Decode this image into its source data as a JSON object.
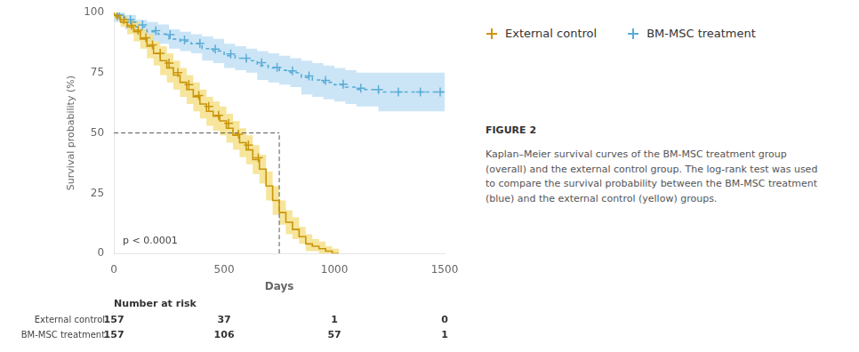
{
  "chart_data": {
    "type": "line",
    "title": "FIGURE 2",
    "caption": "Kaplan–Meier survival curves of the BM-MSC treatment group\n(overall) and the external control group. The log-rank test was used\nto compare the survival probability between the BM-MSC treatment\n(blue) and the external control (yellow) groups.",
    "x_label": "Days",
    "y_label": "Survival probability (%)",
    "xlim": [
      0,
      1500
    ],
    "ylim": [
      0,
      100
    ],
    "xticks": [
      0,
      500,
      1000,
      1500
    ],
    "yticks": [
      0,
      25,
      50,
      75,
      100
    ],
    "grid": false,
    "legend": "right",
    "series": [
      {
        "name": "External control",
        "color": "#C9950A",
        "band_color": "#F5E08A",
        "line_style": "solid",
        "marker": "cross",
        "x": [
          0,
          10,
          30,
          60,
          90,
          120,
          150,
          180,
          210,
          240,
          270,
          300,
          330,
          360,
          390,
          420,
          450,
          480,
          510,
          540,
          570,
          600,
          630,
          660,
          690,
          720,
          750,
          780,
          810,
          840,
          870,
          900,
          930,
          960,
          990,
          1020
        ],
        "values": [
          100,
          99,
          98,
          96,
          94,
          92,
          89,
          86,
          83,
          80,
          77,
          74,
          71,
          68,
          65,
          62,
          59,
          57,
          55,
          52,
          49,
          46,
          43,
          39,
          35,
          28,
          22,
          17,
          13,
          10,
          7,
          4,
          3,
          2,
          1,
          0
        ],
        "upper": [
          100,
          100,
          99,
          98,
          97,
          96,
          93,
          91,
          88,
          86,
          83,
          80,
          77,
          74,
          71,
          68,
          65,
          63,
          61,
          58,
          55,
          52,
          49,
          45,
          41,
          34,
          28,
          22,
          18,
          15,
          11,
          8,
          6,
          5,
          3,
          2
        ],
        "lower": [
          100,
          98,
          97,
          94,
          91,
          88,
          85,
          81,
          78,
          74,
          71,
          68,
          65,
          62,
          59,
          56,
          53,
          51,
          49,
          46,
          43,
          40,
          37,
          33,
          29,
          22,
          16,
          12,
          8,
          6,
          4,
          1,
          1,
          0,
          0,
          0
        ],
        "censor_x": [
          15,
          45,
          80,
          110,
          145,
          175,
          210,
          250,
          290,
          340,
          385,
          430,
          475,
          520,
          565,
          610,
          655
        ],
        "censor_values": [
          98.75,
          97,
          94.66666666666667,
          92.66666666666667,
          89.5,
          86.5,
          83,
          79,
          75,
          70,
          65.5,
          61,
          57.333333333333336,
          54,
          49.5,
          45,
          39.666666666666664
        ]
      },
      {
        "name": "BM-MSC treatment",
        "color": "#5BACD6",
        "band_color": "#C2E0F5",
        "line_style": "dashed",
        "marker": "cross",
        "x": [
          0,
          50,
          100,
          150,
          200,
          250,
          300,
          350,
          400,
          450,
          500,
          550,
          600,
          650,
          700,
          750,
          800,
          850,
          900,
          950,
          1000,
          1050,
          1100,
          1150,
          1200,
          1250,
          1300,
          1350,
          1400,
          1450,
          1500
        ],
        "values": [
          100,
          98,
          96,
          94,
          92,
          91,
          89,
          88,
          87,
          85,
          84,
          82,
          81,
          80,
          78,
          77,
          76,
          75,
          73,
          72,
          71,
          70,
          69,
          68,
          68,
          67,
          67,
          67,
          67,
          67,
          67
        ],
        "upper": [
          100,
          100,
          99,
          97,
          96,
          95,
          93,
          92,
          91,
          90,
          89,
          87,
          86,
          85,
          84,
          83,
          82,
          81,
          80,
          79,
          78,
          77,
          76,
          75,
          75,
          75,
          75,
          75,
          75,
          75,
          75
        ],
        "lower": [
          100,
          96,
          93,
          91,
          88,
          87,
          85,
          84,
          83,
          80,
          79,
          77,
          76,
          75,
          72,
          71,
          70,
          69,
          66,
          65,
          64,
          63,
          62,
          61,
          61,
          59,
          59,
          59,
          59,
          59,
          59
        ],
        "censor_x": [
          25,
          75,
          130,
          190,
          255,
          320,
          390,
          460,
          530,
          600,
          670,
          740,
          810,
          885,
          960,
          1040,
          1120,
          1200,
          1290,
          1390,
          1480
        ],
        "censor_values": [
          99,
          97,
          94.8,
          92.4,
          90.8,
          88.6,
          87.2,
          84.8,
          82.8,
          81,
          79.2,
          77.2,
          75.8,
          73.6,
          71.8,
          70.2,
          68.6,
          68,
          67,
          67,
          67
        ]
      }
    ],
    "median_line": {
      "x": 750,
      "y": 50
    },
    "annotations": [
      {
        "text": "p < 0.0001",
        "x": 40,
        "y": 3
      }
    ],
    "risk_table": {
      "title": "Number at risk",
      "times": [
        0,
        500,
        1000,
        1500
      ],
      "rows": [
        {
          "name": "External control",
          "values": [
            157,
            37,
            1,
            0
          ]
        },
        {
          "name": "BM-MSC treatment",
          "values": [
            157,
            106,
            57,
            1
          ]
        }
      ]
    }
  }
}
